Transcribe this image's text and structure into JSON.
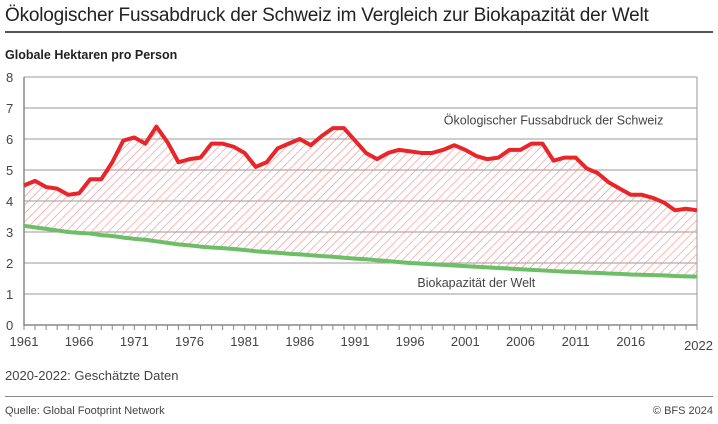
{
  "header": {
    "title": "Ökologischer Fussabdruck der Schweiz im Vergleich zur Biokapazität der Welt",
    "unit_label": "Globale Hektaren pro Person"
  },
  "footer": {
    "note": "2020-2022: Geschätzte Daten",
    "source": "Quelle: Global Footprint Network",
    "copyright": "© BFS 2024"
  },
  "colors": {
    "footprint": "#e8262a",
    "biocapacity": "#6dbf67",
    "hatch": "#f08a8a",
    "grid": "#999999"
  },
  "chart_data": {
    "type": "line",
    "title": "Ökologischer Fussabdruck der Schweiz im Vergleich zur Biokapazität der Welt",
    "xlabel": "",
    "ylabel": "Globale Hektaren pro Person",
    "xlim": [
      1961,
      2022
    ],
    "ylim": [
      0,
      8
    ],
    "grid": true,
    "x_tick_labels": [
      "1961",
      "1966",
      "1971",
      "1976",
      "1981",
      "1986",
      "1991",
      "1996",
      "2001",
      "2006",
      "2011",
      "2016",
      "2022"
    ],
    "x_ticks": [
      1961,
      1966,
      1971,
      1976,
      1981,
      1986,
      1991,
      1996,
      2001,
      2006,
      2011,
      2016,
      2022
    ],
    "y_ticks": [
      0,
      1,
      2,
      3,
      4,
      5,
      6,
      7,
      8
    ],
    "x": [
      1961,
      1962,
      1963,
      1964,
      1965,
      1966,
      1967,
      1968,
      1969,
      1970,
      1971,
      1972,
      1973,
      1974,
      1975,
      1976,
      1977,
      1978,
      1979,
      1980,
      1981,
      1982,
      1983,
      1984,
      1985,
      1986,
      1987,
      1988,
      1989,
      1990,
      1991,
      1992,
      1993,
      1994,
      1995,
      1996,
      1997,
      1998,
      1999,
      2000,
      2001,
      2002,
      2003,
      2004,
      2005,
      2006,
      2007,
      2008,
      2009,
      2010,
      2011,
      2012,
      2013,
      2014,
      2015,
      2016,
      2017,
      2018,
      2019,
      2020,
      2021,
      2022
    ],
    "series": [
      {
        "name": "Ökologischer Fussabdruck der Schweiz",
        "values": [
          4.5,
          4.65,
          4.45,
          4.4,
          4.2,
          4.25,
          4.7,
          4.7,
          5.25,
          5.95,
          6.05,
          5.85,
          6.4,
          5.9,
          5.25,
          5.35,
          5.4,
          5.85,
          5.85,
          5.75,
          5.55,
          5.1,
          5.25,
          5.7,
          5.85,
          6.0,
          5.8,
          6.1,
          6.35,
          6.35,
          5.95,
          5.55,
          5.35,
          5.55,
          5.65,
          5.6,
          5.55,
          5.55,
          5.65,
          5.8,
          5.65,
          5.45,
          5.35,
          5.4,
          5.65,
          5.65,
          5.85,
          5.85,
          5.3,
          5.4,
          5.4,
          5.05,
          4.9,
          4.6,
          4.4,
          4.2,
          4.2,
          4.1,
          3.95,
          3.7,
          3.75,
          3.7
        ]
      },
      {
        "name": "Biokapazität der Welt",
        "values": [
          3.2,
          3.15,
          3.1,
          3.05,
          3.0,
          2.97,
          2.95,
          2.9,
          2.87,
          2.82,
          2.78,
          2.75,
          2.7,
          2.65,
          2.6,
          2.57,
          2.53,
          2.5,
          2.48,
          2.45,
          2.42,
          2.38,
          2.35,
          2.33,
          2.3,
          2.28,
          2.25,
          2.22,
          2.2,
          2.17,
          2.14,
          2.12,
          2.09,
          2.06,
          2.03,
          2.0,
          1.98,
          1.96,
          1.94,
          1.92,
          1.9,
          1.88,
          1.86,
          1.84,
          1.82,
          1.8,
          1.78,
          1.76,
          1.74,
          1.72,
          1.71,
          1.69,
          1.68,
          1.66,
          1.65,
          1.63,
          1.62,
          1.61,
          1.6,
          1.58,
          1.57,
          1.56
        ]
      }
    ],
    "annotations": [
      {
        "text": "Ökologischer Fussabdruck der Schweiz",
        "x": 2009,
        "y": 6.6,
        "anchor": "middle"
      },
      {
        "text": "Biokapazität der Welt",
        "x": 2002,
        "y": 1.35,
        "anchor": "middle"
      }
    ],
    "shading": "hatched area between the two series (overshoot)"
  }
}
